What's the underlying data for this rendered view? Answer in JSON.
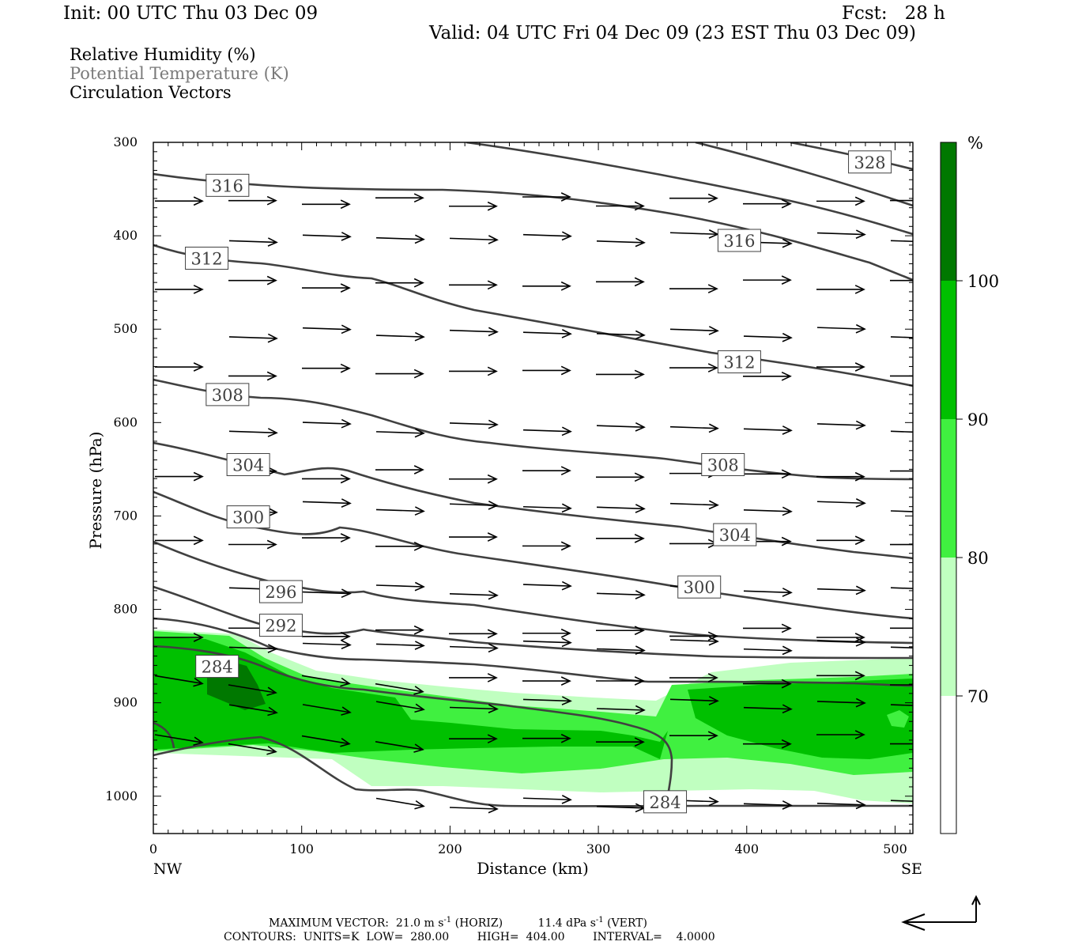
{
  "header": {
    "init": "Init: 00 UTC Thu 03 Dec 09",
    "fcst": "Fcst:   28 h",
    "valid": "Valid: 04 UTC Fri 04 Dec 09 (23 EST Thu 03 Dec 09)"
  },
  "legend": {
    "rh": "Relative Humidity (%)",
    "theta": "Potential Temperature (K)",
    "vectors": "Circulation Vectors"
  },
  "colorbar": {
    "unit": "%",
    "levels": [
      "70",
      "80",
      "90",
      "100"
    ],
    "colors": [
      "#ffffff",
      "#c0ffc0",
      "#40f040",
      "#00c000",
      "#007800"
    ]
  },
  "colors": {
    "contour": "#404040",
    "vector": "#000000",
    "rh_70": "#c0ffc0",
    "rh_80": "#40f040",
    "rh_90": "#00c000",
    "rh_100": "#007800"
  },
  "footer": {
    "max_vector": "MAXIMUM VECTOR:  21.0 m s",
    "max_vector_exp1": "-1",
    "max_vector_mid": " (HORIZ)          11.4 dPa s",
    "max_vector_exp2": "-1",
    "max_vector_end": " (VERT)",
    "contours": "CONTOURS:  UNITS=K  LOW=  280.00        HIGH=  404.00        INTERVAL=    4.0000"
  },
  "chart_data": {
    "type": "cross-section",
    "xlabel": "Distance (km)",
    "ylabel": "Pressure (hPa)",
    "xlim": [
      0,
      512
    ],
    "ylim": [
      1040,
      300
    ],
    "x_ticks": [
      "0",
      "100",
      "200",
      "300",
      "400",
      "500"
    ],
    "y_ticks": [
      "300",
      "400",
      "500",
      "600",
      "700",
      "800",
      "900",
      "1000"
    ],
    "left_end_label": "NW",
    "right_end_label": "SE",
    "contour_labels": [
      {
        "text": "316",
        "x": 50,
        "p": 346
      },
      {
        "text": "328",
        "x": 483,
        "p": 321
      },
      {
        "text": "316",
        "x": 395,
        "p": 405
      },
      {
        "text": "312",
        "x": 36,
        "p": 424
      },
      {
        "text": "312",
        "x": 395,
        "p": 535
      },
      {
        "text": "308",
        "x": 50,
        "p": 570
      },
      {
        "text": "304",
        "x": 64,
        "p": 645
      },
      {
        "text": "308",
        "x": 384,
        "p": 645
      },
      {
        "text": "300",
        "x": 64,
        "p": 701
      },
      {
        "text": "304",
        "x": 392,
        "p": 720
      },
      {
        "text": "300",
        "x": 368,
        "p": 776
      },
      {
        "text": "296",
        "x": 86,
        "p": 781
      },
      {
        "text": "292",
        "x": 86,
        "p": 817
      },
      {
        "text": "284",
        "x": 43,
        "p": 861
      },
      {
        "text": "284",
        "x": 345,
        "p": 1006
      }
    ]
  }
}
